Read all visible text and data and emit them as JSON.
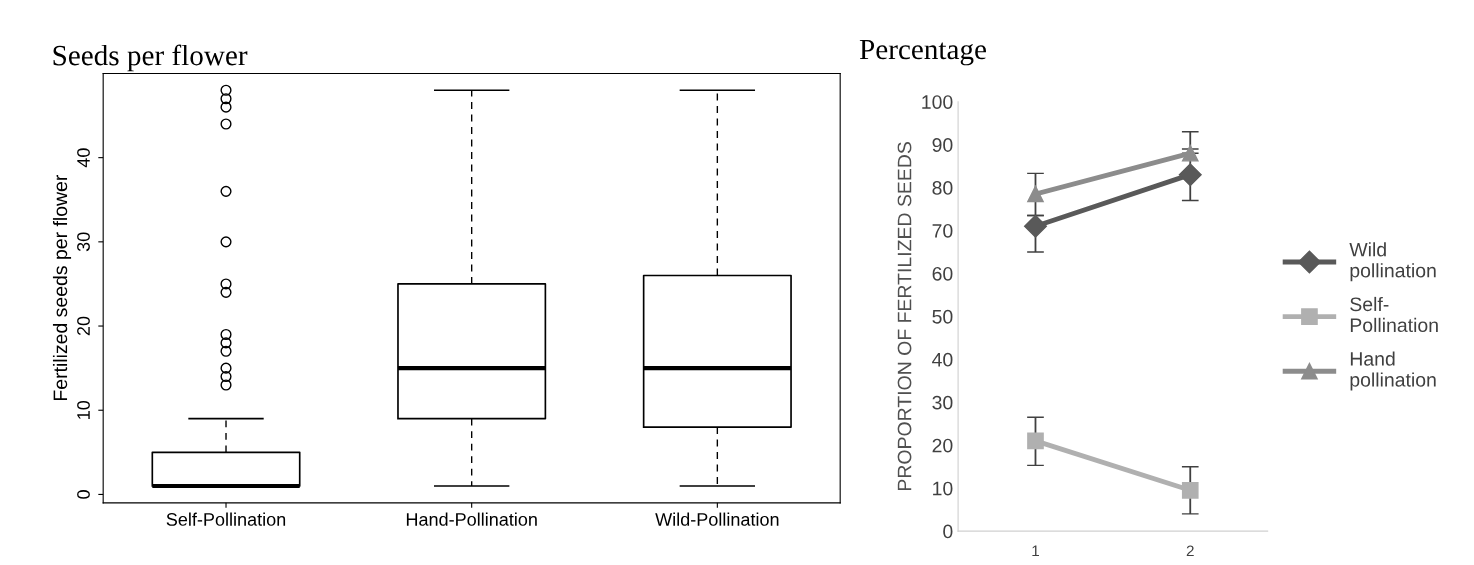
{
  "chart_data": [
    {
      "type": "box",
      "title": "Seeds per flower",
      "ylabel": "Fertilized seeds per flower",
      "categories": [
        "Self-Pollination",
        "Hand-Pollination",
        "Wild-Pollination"
      ],
      "ylim": [
        -1,
        50
      ],
      "yticks": [
        0,
        10,
        20,
        30,
        40
      ],
      "grid": false,
      "boxes": [
        {
          "low": 1,
          "q1": 1,
          "median": 1,
          "q3": 5,
          "high": 9,
          "outliers": [
            13,
            14,
            15,
            17,
            18,
            19,
            24,
            25,
            30,
            36,
            44,
            46,
            47,
            48
          ]
        },
        {
          "low": 1,
          "q1": 9,
          "median": 15,
          "q3": 25,
          "high": 48
        },
        {
          "low": 1,
          "q1": 8,
          "median": 15,
          "q3": 26,
          "high": 48
        }
      ]
    },
    {
      "type": "line",
      "title": "Percentage",
      "ylabel": "PROPORTION OF FERTILIZED SEEDS",
      "categories": [
        "1",
        "2"
      ],
      "ylim": [
        0,
        100
      ],
      "yticks": [
        0,
        10,
        20,
        30,
        40,
        50,
        60,
        70,
        80,
        90,
        100
      ],
      "grid": false,
      "legend": "right",
      "series": [
        {
          "name": "Wild pollination",
          "color": "#595959",
          "marker": "diamond",
          "values": [
            71,
            83
          ],
          "errors": [
            [
              65,
              73.5
            ],
            [
              77,
              89
            ]
          ]
        },
        {
          "name": "Self-Pollination",
          "color": "#b0b0b0",
          "marker": "square",
          "values": [
            21,
            9.5
          ],
          "errors": [
            [
              15.3,
              26.5
            ],
            [
              4,
              15
            ]
          ]
        },
        {
          "name": "Hand pollination",
          "color": "#8c8c8c",
          "marker": "triangle",
          "values": [
            78.5,
            88
          ],
          "errors": [
            [
              73.5,
              83.3
            ],
            [
              88,
              93
            ]
          ]
        }
      ]
    }
  ]
}
